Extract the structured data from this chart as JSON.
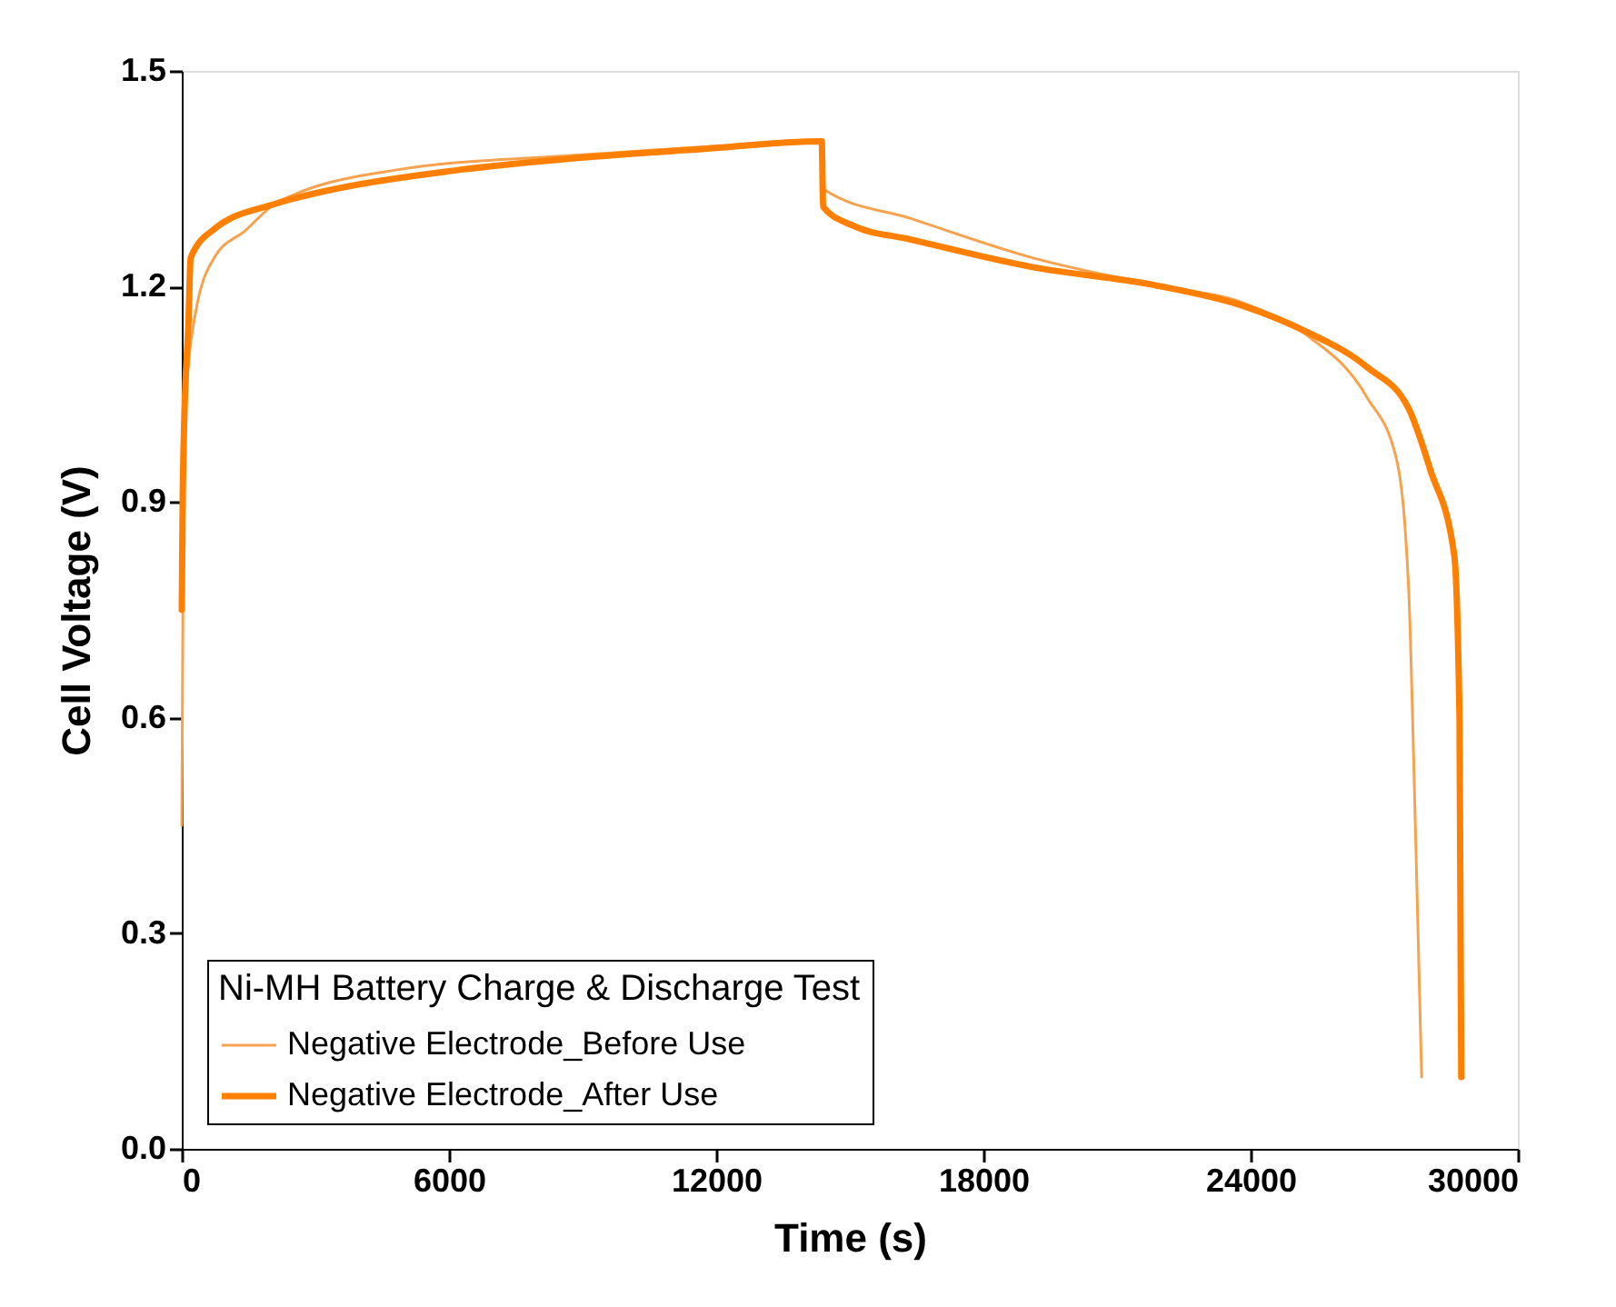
{
  "chart_data": {
    "type": "line",
    "xlabel": "Time (s)",
    "ylabel": "Cell Voltage (V)",
    "legend_title": "Ni-MH Battery Charge & Discharge Test",
    "legend": "bottom left",
    "grid": false,
    "marker": "none",
    "line_style": "solid",
    "xlim": [
      0,
      30000
    ],
    "xticks": [
      0,
      6000,
      12000,
      18000,
      24000,
      30000
    ],
    "ylim": [
      0,
      1.5
    ],
    "yticks": [
      {
        "value": 0,
        "label": "0.0"
      },
      0.3,
      0.6,
      0.9,
      1.2,
      1.5
    ],
    "series": [
      {
        "name": "Negative Electrode_Before Use",
        "color": "#f7a24f",
        "x": [
          0,
          30,
          100,
          300,
          730,
          1430,
          2100,
          4800,
          8900,
          11630,
          14370,
          14400,
          14450,
          16400,
          19100,
          21840,
          23880,
          25220,
          26610,
          27270,
          27550,
          27670,
          27840
        ],
        "values": [
          0.45,
          0.8,
          1.05,
          1.16,
          1.24,
          1.278,
          1.315,
          1.362,
          1.383,
          1.394,
          1.402,
          1.36,
          1.334,
          1.294,
          1.24,
          1.202,
          1.176,
          1.134,
          1.046,
          0.961,
          0.776,
          0.52,
          0.1
        ]
      },
      {
        "name": "Negative Electrode_After Use",
        "color": "#ff8000",
        "x": [
          0,
          20,
          50,
          150,
          200,
          730,
          2100,
          3470,
          6200,
          8900,
          11630,
          14370,
          14400,
          15020,
          16400,
          19100,
          21840,
          23880,
          25220,
          26610,
          27550,
          28040,
          28570,
          28690,
          28730
        ],
        "values": [
          0.75,
          0.9,
          1.0,
          1.15,
          1.24,
          1.28,
          1.315,
          1.336,
          1.362,
          1.379,
          1.391,
          1.402,
          1.311,
          1.286,
          1.265,
          1.227,
          1.202,
          1.172,
          1.138,
          1.088,
          1.03,
          0.944,
          0.827,
          0.6,
          0.1
        ]
      }
    ]
  }
}
